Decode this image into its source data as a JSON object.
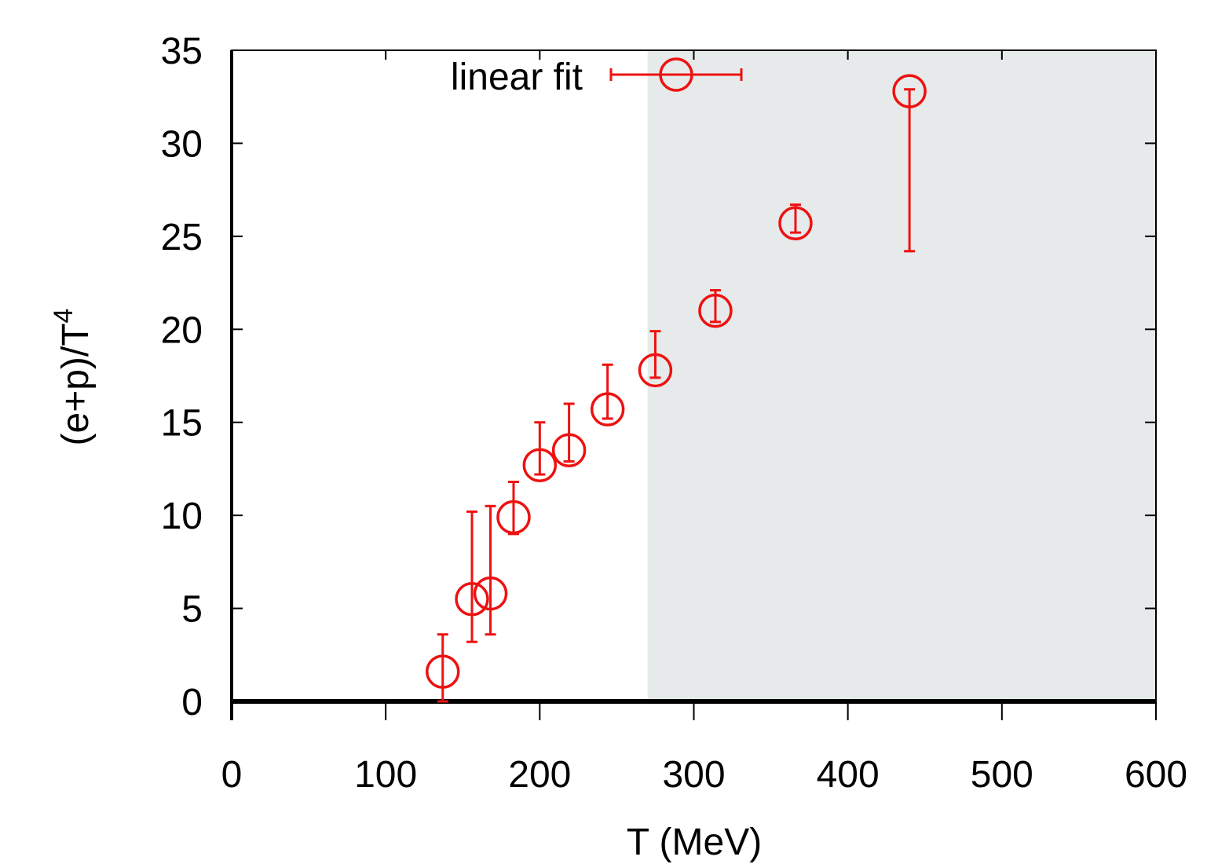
{
  "chart_data": {
    "type": "scatter",
    "xlabel": "T (MeV)",
    "ylabel": {
      "base": "(e+p)/T",
      "superscript": "4"
    },
    "xlim": [
      0,
      600
    ],
    "ylim": [
      0,
      35
    ],
    "xticks": [
      0,
      100,
      200,
      300,
      400,
      500,
      600
    ],
    "yticks": [
      0,
      5,
      10,
      15,
      20,
      25,
      30,
      35
    ],
    "grid": false,
    "legend_position": "top",
    "shaded_region": {
      "x_from": 270,
      "x_to": 600,
      "color": "#e6eaea"
    },
    "zero_line": true,
    "series": [
      {
        "name": "linear fit",
        "color": "#ee1111",
        "marker": "open-circle",
        "points": [
          {
            "x": 137,
            "y": 1.6,
            "ylow": 0.0,
            "yhigh": 3.6
          },
          {
            "x": 156,
            "y": 5.5,
            "ylow": 3.2,
            "yhigh": 10.2
          },
          {
            "x": 168,
            "y": 5.8,
            "ylow": 3.6,
            "yhigh": 10.5
          },
          {
            "x": 183,
            "y": 9.9,
            "ylow": 9.0,
            "yhigh": 11.8
          },
          {
            "x": 200,
            "y": 12.7,
            "ylow": 12.2,
            "yhigh": 15.0
          },
          {
            "x": 219,
            "y": 13.5,
            "ylow": 12.9,
            "yhigh": 16.0
          },
          {
            "x": 244,
            "y": 15.7,
            "ylow": 15.2,
            "yhigh": 18.1
          },
          {
            "x": 275,
            "y": 17.8,
            "ylow": 17.4,
            "yhigh": 19.9
          },
          {
            "x": 314,
            "y": 21.0,
            "ylow": 20.4,
            "yhigh": 22.1
          },
          {
            "x": 366,
            "y": 25.7,
            "ylow": 25.2,
            "yhigh": 26.7
          },
          {
            "x": 440,
            "y": 32.8,
            "ylow": 24.2,
            "yhigh": 32.9
          }
        ]
      }
    ]
  }
}
